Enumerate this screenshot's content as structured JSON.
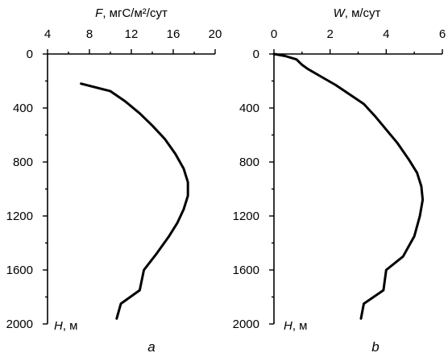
{
  "chart_data": [
    {
      "type": "line",
      "panel_label": "a",
      "xlabel_var": "F",
      "xlabel_unit": ", мгС/м²/сут",
      "ylabel_var": "H",
      "ylabel_unit": ", м",
      "x_axis_position": "top",
      "y_reversed": true,
      "xlim": [
        4,
        20
      ],
      "ylim": [
        0,
        2000
      ],
      "x_ticks": [
        4,
        8,
        12,
        16,
        20
      ],
      "y_ticks": [
        0,
        400,
        800,
        1200,
        1600,
        2000
      ],
      "grid": false,
      "series": [
        {
          "points": [
            {
              "x": 7.2,
              "y": 220
            },
            {
              "x": 10.0,
              "y": 275
            },
            {
              "x": 11.4,
              "y": 350
            },
            {
              "x": 12.8,
              "y": 440
            },
            {
              "x": 14.0,
              "y": 530
            },
            {
              "x": 15.2,
              "y": 630
            },
            {
              "x": 16.2,
              "y": 740
            },
            {
              "x": 17.0,
              "y": 850
            },
            {
              "x": 17.4,
              "y": 950
            },
            {
              "x": 17.4,
              "y": 1050
            },
            {
              "x": 17.0,
              "y": 1150
            },
            {
              "x": 16.4,
              "y": 1250
            },
            {
              "x": 15.6,
              "y": 1350
            },
            {
              "x": 14.4,
              "y": 1480
            },
            {
              "x": 13.2,
              "y": 1600
            },
            {
              "x": 12.8,
              "y": 1750
            },
            {
              "x": 11.0,
              "y": 1850
            },
            {
              "x": 10.6,
              "y": 1960
            }
          ]
        }
      ]
    },
    {
      "type": "line",
      "panel_label": "b",
      "xlabel_var": "W",
      "xlabel_unit": ", м/сут",
      "ylabel_var": "H",
      "ylabel_unit": ", м",
      "x_axis_position": "top",
      "y_reversed": true,
      "xlim": [
        0,
        6
      ],
      "ylim": [
        0,
        2000
      ],
      "x_ticks": [
        0,
        2,
        4,
        6
      ],
      "y_ticks": [
        0,
        400,
        800,
        1200,
        1600,
        2000
      ],
      "grid": false,
      "series": [
        {
          "points": [
            {
              "x": 0.0,
              "y": 0
            },
            {
              "x": 0.4,
              "y": 15
            },
            {
              "x": 0.8,
              "y": 40
            },
            {
              "x": 1.0,
              "y": 80
            },
            {
              "x": 1.2,
              "y": 110
            },
            {
              "x": 1.7,
              "y": 170
            },
            {
              "x": 2.2,
              "y": 230
            },
            {
              "x": 2.7,
              "y": 300
            },
            {
              "x": 3.2,
              "y": 370
            },
            {
              "x": 3.6,
              "y": 460
            },
            {
              "x": 4.0,
              "y": 560
            },
            {
              "x": 4.4,
              "y": 660
            },
            {
              "x": 4.8,
              "y": 780
            },
            {
              "x": 5.1,
              "y": 880
            },
            {
              "x": 5.25,
              "y": 980
            },
            {
              "x": 5.3,
              "y": 1080
            },
            {
              "x": 5.2,
              "y": 1200
            },
            {
              "x": 5.0,
              "y": 1350
            },
            {
              "x": 4.6,
              "y": 1500
            },
            {
              "x": 4.0,
              "y": 1600
            },
            {
              "x": 3.9,
              "y": 1750
            },
            {
              "x": 3.2,
              "y": 1850
            },
            {
              "x": 3.1,
              "y": 1960
            }
          ]
        }
      ]
    }
  ]
}
